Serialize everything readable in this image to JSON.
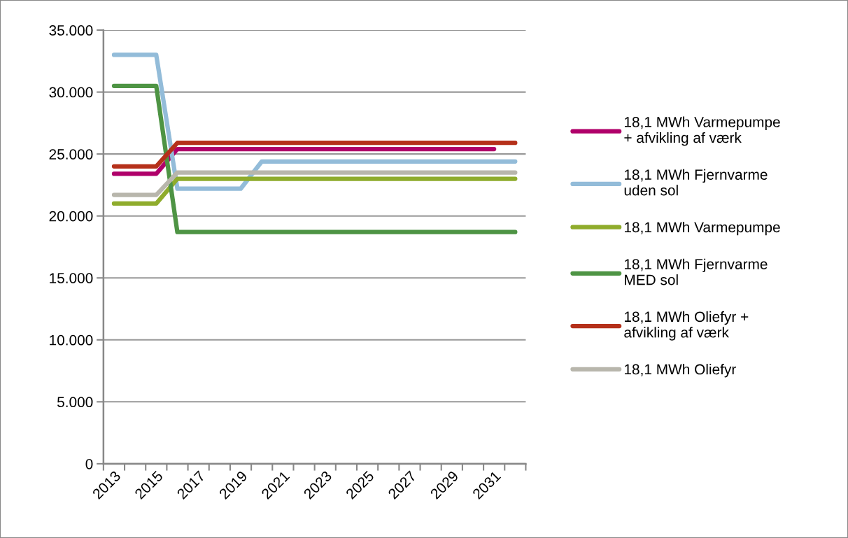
{
  "chart_data": {
    "type": "line",
    "categories": [
      "2013",
      null,
      "2015",
      null,
      "2017",
      null,
      "2019",
      null,
      "2021",
      null,
      "2023",
      null,
      "2025",
      null,
      "2027",
      null,
      "2029",
      null,
      "2031",
      null
    ],
    "series": [
      {
        "name": "18,1 MWh Varmepumpe\n+ afvikling af værk",
        "color": "#b0006a",
        "values": [
          23400,
          23400,
          23400,
          25400,
          25400,
          25400,
          25400,
          25400,
          25400,
          25400,
          25400,
          25400,
          25400,
          25400,
          25400,
          25400,
          25400,
          25400,
          25400,
          null
        ]
      },
      {
        "name": "18,1 MWh Fjernvarme\nuden sol",
        "color": "#93bcd9",
        "values": [
          33000,
          33000,
          33000,
          22200,
          22200,
          22200,
          22200,
          24400,
          24400,
          24400,
          24400,
          24400,
          24400,
          24400,
          24400,
          24400,
          24400,
          24400,
          24400,
          24400
        ]
      },
      {
        "name": "18,1 MWh Varmepumpe",
        "color": "#8fac2c",
        "values": [
          21000,
          21000,
          21000,
          23000,
          23000,
          23000,
          23000,
          23000,
          23000,
          23000,
          23000,
          23000,
          23000,
          23000,
          23000,
          23000,
          23000,
          23000,
          23000,
          23000
        ]
      },
      {
        "name": "18,1 MWh Fjernvarme\nMED sol",
        "color": "#4e9444",
        "values": [
          30500,
          30500,
          30500,
          18700,
          18700,
          18700,
          18700,
          18700,
          18700,
          18700,
          18700,
          18700,
          18700,
          18700,
          18700,
          18700,
          18700,
          18700,
          18700,
          18700
        ]
      },
      {
        "name": "18,1 MWh Oliefyr +\nafvikling af værk",
        "color": "#b5301a",
        "values": [
          24000,
          24000,
          24000,
          25900,
          25900,
          25900,
          25900,
          25900,
          25900,
          25900,
          25900,
          25900,
          25900,
          25900,
          25900,
          25900,
          25900,
          25900,
          25900,
          25900
        ]
      },
      {
        "name": "18,1 MWh Oliefyr",
        "color": "#b8b6ac",
        "values": [
          21700,
          21700,
          21700,
          23500,
          23500,
          23500,
          23500,
          23500,
          23500,
          23500,
          23500,
          23500,
          23500,
          23500,
          23500,
          23500,
          23500,
          23500,
          23500,
          23500
        ]
      }
    ],
    "ylim": [
      0,
      35000
    ],
    "yticks": [
      {
        "value": 0,
        "label": "0"
      },
      {
        "value": 5000,
        "label": "5.000"
      },
      {
        "value": 10000,
        "label": "10.000"
      },
      {
        "value": 15000,
        "label": "15.000"
      },
      {
        "value": 20000,
        "label": "20.000"
      },
      {
        "value": 25000,
        "label": "25.000"
      },
      {
        "value": 30000,
        "label": "30.000"
      },
      {
        "value": 35000,
        "label": "35.000"
      }
    ],
    "grid": "y",
    "legend": "right",
    "marker": "none",
    "line_style": "solid"
  }
}
